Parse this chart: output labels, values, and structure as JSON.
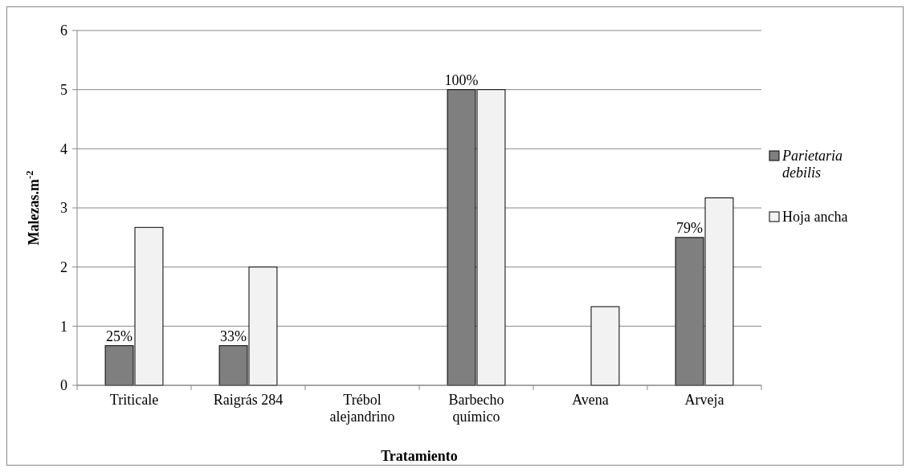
{
  "chart_data": {
    "type": "bar",
    "xlabel": "Tratamiento",
    "ylabel": "Malezas.m$^{-2}$",
    "categories": [
      "Triticale",
      "Raigrás 284",
      "Trébol alejandrino",
      "Barbecho químico",
      "Avena",
      "Arveja"
    ],
    "series": [
      {
        "name": "Parietaria debilis",
        "color": "#7f7f7f",
        "values": [
          0.67,
          0.67,
          0,
          5,
          0,
          2.5
        ]
      },
      {
        "name": "Hoja ancha",
        "color": "#f2f2f2",
        "values": [
          2.67,
          2,
          0,
          5,
          1.33,
          3.17
        ]
      }
    ],
    "annotations": [
      {
        "text": "25%",
        "x": "Triticale",
        "y": 0.67
      },
      {
        "text": "33%",
        "x": "Raigrás 284",
        "y": 0.67
      },
      {
        "text": "100%",
        "x": "Barbecho químico",
        "y": 5
      },
      {
        "text": "79%",
        "x": "Arveja",
        "y": 2.5
      }
    ],
    "ylim": [
      0,
      6
    ],
    "yticks": [
      0,
      1,
      2,
      3,
      4,
      5,
      6
    ],
    "grid": "y",
    "legend": "right"
  }
}
